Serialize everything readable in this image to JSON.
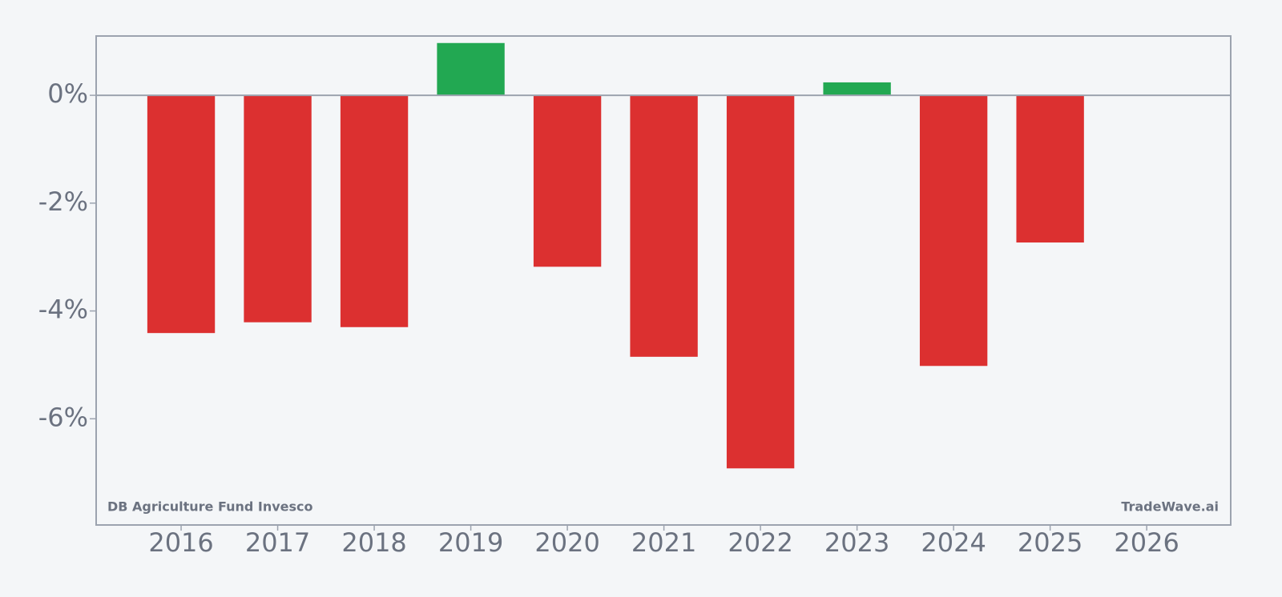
{
  "chart_data": {
    "type": "bar",
    "x": [
      2016,
      2017,
      2018,
      2019,
      2020,
      2021,
      2022,
      2023,
      2024,
      2025,
      2026
    ],
    "values": [
      -4.41,
      -4.21,
      -4.3,
      0.97,
      -3.18,
      -4.85,
      -6.92,
      0.24,
      -5.02,
      -2.73,
      null
    ],
    "positive_color": "#22a852",
    "negative_color": "#dc3030",
    "xlim": [
      2015.12,
      2026.87
    ],
    "xticks": [
      2016,
      2017,
      2018,
      2019,
      2020,
      2021,
      2022,
      2023,
      2024,
      2025,
      2026
    ],
    "ylim": [
      -7.97,
      1.1
    ],
    "yticks": [
      {
        "value": 0,
        "label": "0%"
      },
      {
        "value": -2,
        "label": "-2%"
      },
      {
        "value": -4,
        "label": "-4%"
      },
      {
        "value": -6,
        "label": "-6%"
      }
    ],
    "annotations": [
      "DB Agriculture Fund Invesco",
      "TradeWave.ai"
    ]
  }
}
